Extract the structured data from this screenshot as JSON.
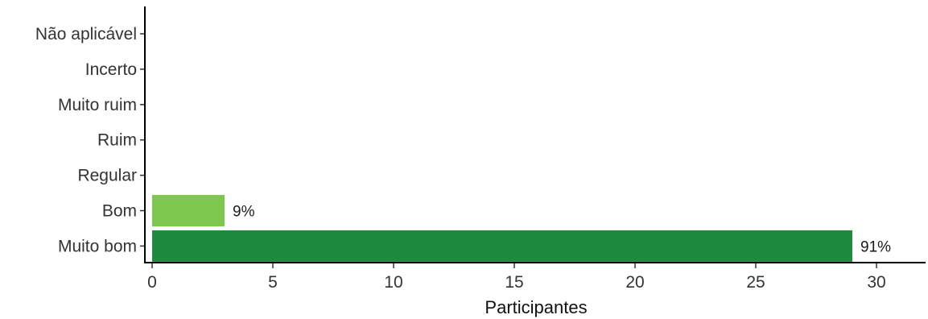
{
  "chart_data": {
    "type": "bar",
    "orientation": "horizontal",
    "categories": [
      "Não aplicável",
      "Incerto",
      "Muito ruim",
      "Ruim",
      "Regular",
      "Bom",
      "Muito bom"
    ],
    "values": [
      0,
      0,
      0,
      0,
      0,
      3,
      29
    ],
    "data_labels": [
      "",
      "",
      "",
      "",
      "",
      "9%",
      "91%"
    ],
    "colors": [
      "#1e8a3f",
      "#1e8a3f",
      "#1e8a3f",
      "#1e8a3f",
      "#1e8a3f",
      "#7ec850",
      "#1e8a3f"
    ],
    "xlabel": "Participantes",
    "ylabel": "",
    "title": "",
    "xlim": [
      0,
      31.5
    ],
    "x_ticks": [
      0,
      5,
      10,
      15,
      20,
      25,
      30
    ],
    "grid": false,
    "legend": "none"
  }
}
